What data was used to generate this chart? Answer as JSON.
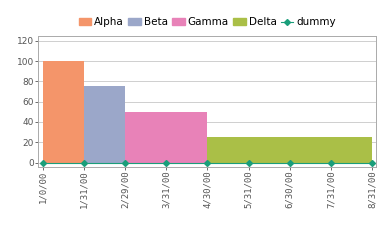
{
  "bars": [
    {
      "label": "Alpha",
      "x_start": 0,
      "x_end": 1,
      "height": 100,
      "color": "#F4956A"
    },
    {
      "label": "Beta",
      "x_start": 1,
      "x_end": 2,
      "height": 75,
      "color": "#9BA7C9"
    },
    {
      "label": "Gamma",
      "x_start": 2,
      "x_end": 4,
      "height": 50,
      "color": "#E882B8"
    },
    {
      "label": "Delta",
      "x_start": 4,
      "x_end": 8,
      "height": 25,
      "color": "#AABF47"
    }
  ],
  "dummy_x": [
    0,
    1,
    2,
    3,
    4,
    5,
    6,
    7,
    8
  ],
  "dummy_y": [
    0,
    0,
    0,
    0,
    0,
    0,
    0,
    0,
    0
  ],
  "dummy_color": "#1A9E7A",
  "xtick_positions": [
    0,
    1,
    2,
    3,
    4,
    5,
    6,
    7,
    8
  ],
  "xtick_labels": [
    "1/0/00",
    "1/31/00",
    "2/29/00",
    "3/31/00",
    "4/30/00",
    "5/31/00",
    "6/30/00",
    "7/31/00",
    "8/31/00"
  ],
  "ytick_positions": [
    0,
    20,
    40,
    60,
    80,
    100,
    120
  ],
  "ytick_labels": [
    "0",
    "20",
    "40",
    "60",
    "80",
    "100",
    "120"
  ],
  "ylim": [
    -4,
    125
  ],
  "xlim": [
    -0.1,
    8.1
  ],
  "bg_color": "#FFFFFF",
  "plot_bg_color": "#FFFFFF",
  "grid_color": "#C8C8C8",
  "tick_fontsize": 6.5,
  "legend_fontsize": 7.5
}
